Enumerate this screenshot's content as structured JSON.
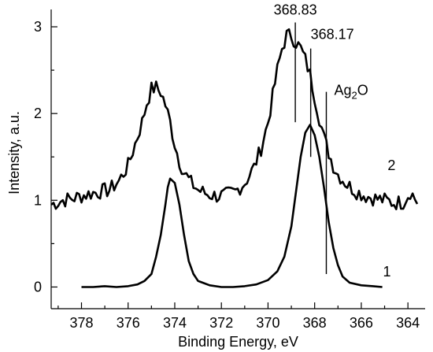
{
  "chart_data": {
    "type": "line",
    "xlabel": "Binding Energy, eV",
    "ylabel": "Intensity, a.u.",
    "xlim": [
      379.3,
      363.6
    ],
    "ylim": [
      -0.25,
      3.2
    ],
    "x_reversed": true,
    "x_ticks": [
      378,
      376,
      374,
      372,
      370,
      368,
      366,
      364
    ],
    "y_ticks": [
      0,
      1,
      2,
      3
    ],
    "grid": false,
    "legend": "none",
    "line_color": "#000000",
    "series": [
      {
        "label": "1",
        "points": [
          [
            378.0,
            0.0
          ],
          [
            377.5,
            0.0
          ],
          [
            377.0,
            0.01
          ],
          [
            376.5,
            0.0
          ],
          [
            376.0,
            0.01
          ],
          [
            375.6,
            0.03
          ],
          [
            375.3,
            0.07
          ],
          [
            375.0,
            0.15
          ],
          [
            374.8,
            0.35
          ],
          [
            374.6,
            0.6
          ],
          [
            374.4,
            0.95
          ],
          [
            374.3,
            1.15
          ],
          [
            374.2,
            1.25
          ],
          [
            374.0,
            1.2
          ],
          [
            373.8,
            0.95
          ],
          [
            373.6,
            0.6
          ],
          [
            373.4,
            0.3
          ],
          [
            373.2,
            0.15
          ],
          [
            373.0,
            0.07
          ],
          [
            372.5,
            0.02
          ],
          [
            372.0,
            0.0
          ],
          [
            371.5,
            0.0
          ],
          [
            371.0,
            0.01
          ],
          [
            370.5,
            0.03
          ],
          [
            370.0,
            0.08
          ],
          [
            369.6,
            0.18
          ],
          [
            369.3,
            0.35
          ],
          [
            369.0,
            0.7
          ],
          [
            368.8,
            1.1
          ],
          [
            368.6,
            1.5
          ],
          [
            368.4,
            1.78
          ],
          [
            368.2,
            1.87
          ],
          [
            368.0,
            1.75
          ],
          [
            367.8,
            1.5
          ],
          [
            367.6,
            1.15
          ],
          [
            367.4,
            0.75
          ],
          [
            367.2,
            0.45
          ],
          [
            367.0,
            0.25
          ],
          [
            366.8,
            0.12
          ],
          [
            366.5,
            0.05
          ],
          [
            366.0,
            0.02
          ],
          [
            365.5,
            0.01
          ],
          [
            365.1,
            0.0
          ]
        ]
      },
      {
        "label": "2",
        "points": [
          [
            379.3,
            0.95
          ],
          [
            378.8,
            1.0
          ],
          [
            378.4,
            1.02
          ],
          [
            378.0,
            1.05
          ],
          [
            377.6,
            1.08
          ],
          [
            377.2,
            1.1
          ],
          [
            376.8,
            1.12
          ],
          [
            376.4,
            1.22
          ],
          [
            376.0,
            1.4
          ],
          [
            375.7,
            1.65
          ],
          [
            375.4,
            1.9
          ],
          [
            375.2,
            2.12
          ],
          [
            375.0,
            2.28
          ],
          [
            374.8,
            2.3
          ],
          [
            374.6,
            2.25
          ],
          [
            374.4,
            2.1
          ],
          [
            374.2,
            1.9
          ],
          [
            374.0,
            1.65
          ],
          [
            373.8,
            1.45
          ],
          [
            373.6,
            1.32
          ],
          [
            373.3,
            1.2
          ],
          [
            373.0,
            1.12
          ],
          [
            372.6,
            1.07
          ],
          [
            372.2,
            1.05
          ],
          [
            371.8,
            1.06
          ],
          [
            371.4,
            1.1
          ],
          [
            371.0,
            1.2
          ],
          [
            370.6,
            1.38
          ],
          [
            370.3,
            1.6
          ],
          [
            370.0,
            1.9
          ],
          [
            369.8,
            2.2
          ],
          [
            369.6,
            2.5
          ],
          [
            369.4,
            2.75
          ],
          [
            369.2,
            2.9
          ],
          [
            369.0,
            2.9
          ],
          [
            368.8,
            2.82
          ],
          [
            368.6,
            2.75
          ],
          [
            368.4,
            2.62
          ],
          [
            368.2,
            2.45
          ],
          [
            368.0,
            2.2
          ],
          [
            367.8,
            1.95
          ],
          [
            367.6,
            1.72
          ],
          [
            367.4,
            1.55
          ],
          [
            367.2,
            1.4
          ],
          [
            367.0,
            1.3
          ],
          [
            366.6,
            1.18
          ],
          [
            366.2,
            1.1
          ],
          [
            365.8,
            1.05
          ],
          [
            365.4,
            1.02
          ],
          [
            365.0,
            1.0
          ],
          [
            364.6,
            0.97
          ],
          [
            364.2,
            0.98
          ],
          [
            363.9,
            1.1
          ],
          [
            363.6,
            0.98
          ]
        ]
      }
    ],
    "noise": {
      "series_2_amplitude": 0.09
    },
    "annotations": [
      {
        "text": "368.83",
        "x": 368.83,
        "line_from": 1.9,
        "line_to": 3.05
      },
      {
        "text": "368.17",
        "x": 368.17,
        "line_from": 1.5,
        "line_to": 2.75
      },
      {
        "text": "Ag",
        "sub": "2",
        "suffix": "O",
        "x": 367.5,
        "line_from": 0.15,
        "line_to": 2.25
      }
    ],
    "series_labels": [
      {
        "text": "2",
        "x": 364.7,
        "y": 1.35
      },
      {
        "text": "1",
        "x": 364.9,
        "y": 0.12
      }
    ]
  }
}
